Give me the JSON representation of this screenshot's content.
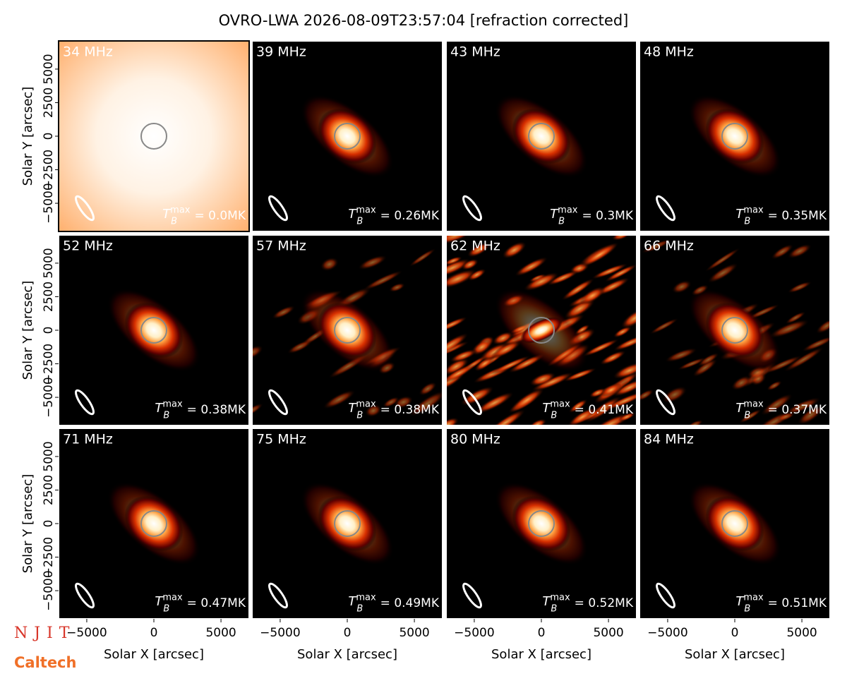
{
  "title": "OVRO-LWA 2026-08-09T23:57:04 [refraction corrected]",
  "logos": {
    "njit": "NJIT",
    "caltech": "Caltech"
  },
  "chart_data": [
    {
      "type": "image",
      "title": "34 MHz",
      "style": "diffuse",
      "tb_label": {
        "symbol": "T",
        "sub": "B",
        "sup": "max",
        "text": "= 0.0MK"
      },
      "xlim": [
        -7100,
        7100
      ],
      "ylim": [
        -7100,
        7100
      ],
      "yticks": [
        {
          "value": -5000,
          "label": "−5000"
        },
        {
          "value": -2500,
          "label": "−2500"
        },
        0,
        2500,
        5000
      ],
      "ylabel": "Solar Y [arcsec]"
    },
    {
      "type": "image",
      "title": "39 MHz",
      "style": "blob",
      "tb_label": {
        "symbol": "T",
        "sub": "B",
        "sup": "max",
        "text": "= 0.26MK"
      },
      "xlim": [
        -7100,
        7100
      ],
      "ylim": [
        -7100,
        7100
      ]
    },
    {
      "type": "image",
      "title": "43 MHz",
      "style": "blob",
      "tb_label": {
        "symbol": "T",
        "sub": "B",
        "sup": "max",
        "text": "= 0.3MK"
      },
      "xlim": [
        -7100,
        7100
      ],
      "ylim": [
        -7100,
        7100
      ]
    },
    {
      "type": "image",
      "title": "48 MHz",
      "style": "blob",
      "tb_label": {
        "symbol": "T",
        "sub": "B",
        "sup": "max",
        "text": "= 0.35MK"
      },
      "xlim": [
        -7100,
        7100
      ],
      "ylim": [
        -7100,
        7100
      ]
    },
    {
      "type": "image",
      "title": "52 MHz",
      "style": "blob",
      "tb_label": {
        "symbol": "T",
        "sub": "B",
        "sup": "max",
        "text": "= 0.38MK"
      },
      "xlim": [
        -7100,
        7100
      ],
      "ylim": [
        -7100,
        7100
      ],
      "yticks": [
        {
          "value": -5000,
          "label": "−5000"
        },
        {
          "value": -2500,
          "label": "−2500"
        },
        0,
        2500,
        5000
      ],
      "ylabel": "Solar Y [arcsec]"
    },
    {
      "type": "image",
      "title": "57 MHz",
      "style": "noisy-light",
      "tb_label": {
        "symbol": "T",
        "sub": "B",
        "sup": "max",
        "text": "= 0.38MK"
      },
      "xlim": [
        -7100,
        7100
      ],
      "ylim": [
        -7100,
        7100
      ]
    },
    {
      "type": "image",
      "title": "62 MHz",
      "style": "noisy-heavy",
      "tb_label": {
        "symbol": "T",
        "sub": "B",
        "sup": "max",
        "text": "= 0.41MK"
      },
      "xlim": [
        -7100,
        7100
      ],
      "ylim": [
        -7100,
        7100
      ]
    },
    {
      "type": "image",
      "title": "66 MHz",
      "style": "noisy-medium",
      "tb_label": {
        "symbol": "T",
        "sub": "B",
        "sup": "max",
        "text": "= 0.37MK"
      },
      "xlim": [
        -7100,
        7100
      ],
      "ylim": [
        -7100,
        7100
      ]
    },
    {
      "type": "image",
      "title": "71 MHz",
      "style": "blob",
      "tb_label": {
        "symbol": "T",
        "sub": "B",
        "sup": "max",
        "text": "= 0.47MK"
      },
      "xlim": [
        -7100,
        7100
      ],
      "ylim": [
        -7100,
        7100
      ],
      "xticks": [
        {
          "value": -5000,
          "label": "−5000"
        },
        0,
        5000
      ],
      "xlabel": "Solar X [arcsec]",
      "yticks": [
        {
          "value": -5000,
          "label": "−5000"
        },
        {
          "value": -2500,
          "label": "−2500"
        },
        0,
        2500,
        5000
      ],
      "ylabel": "Solar Y [arcsec]"
    },
    {
      "type": "image",
      "title": "75 MHz",
      "style": "blob",
      "tb_label": {
        "symbol": "T",
        "sub": "B",
        "sup": "max",
        "text": "= 0.49MK"
      },
      "xlim": [
        -7100,
        7100
      ],
      "ylim": [
        -7100,
        7100
      ],
      "xticks": [
        {
          "value": -5000,
          "label": "−5000"
        },
        0,
        5000
      ],
      "xlabel": "Solar X [arcsec]"
    },
    {
      "type": "image",
      "title": "80 MHz",
      "style": "blob",
      "tb_label": {
        "symbol": "T",
        "sub": "B",
        "sup": "max",
        "text": "= 0.52MK"
      },
      "xlim": [
        -7100,
        7100
      ],
      "ylim": [
        -7100,
        7100
      ],
      "xticks": [
        {
          "value": -5000,
          "label": "−5000"
        },
        0,
        5000
      ],
      "xlabel": "Solar X [arcsec]"
    },
    {
      "type": "image",
      "title": "84 MHz",
      "style": "blob",
      "tb_label": {
        "symbol": "T",
        "sub": "B",
        "sup": "max",
        "text": "= 0.51MK"
      },
      "xlim": [
        -7100,
        7100
      ],
      "ylim": [
        -7100,
        7100
      ],
      "xticks": [
        {
          "value": -5000,
          "label": "−5000"
        },
        0,
        5000
      ],
      "xlabel": "Solar X [arcsec]"
    }
  ]
}
